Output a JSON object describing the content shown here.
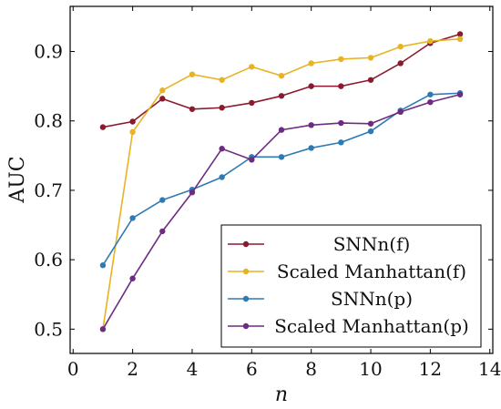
{
  "chart_data": {
    "type": "line",
    "title": "",
    "xlabel": "n",
    "ylabel": "AUC",
    "xlim": [
      -0.1,
      14.1
    ],
    "ylim": [
      0.465,
      0.965
    ],
    "xticks": [
      0,
      2,
      4,
      6,
      8,
      10,
      12,
      14
    ],
    "yticks": [
      0.5,
      0.6,
      0.7,
      0.8,
      0.9
    ],
    "ytick_labels": [
      "0.5",
      "0.6",
      "0.7",
      "0.8",
      "0.9"
    ],
    "grid": false,
    "legend_position": "bottom-right",
    "x": [
      1,
      2,
      3,
      4,
      5,
      6,
      7,
      8,
      9,
      10,
      11,
      12,
      13
    ],
    "series": [
      {
        "name": "SNNn(f)",
        "color": "#8b1a2e",
        "values": [
          0.791,
          0.799,
          0.832,
          0.817,
          0.819,
          0.826,
          0.836,
          0.85,
          0.85,
          0.859,
          0.883,
          0.912,
          0.925
        ]
      },
      {
        "name": "Scaled Manhattan(f)",
        "color": "#e8b323",
        "values": [
          0.5,
          0.784,
          0.844,
          0.867,
          0.859,
          0.878,
          0.865,
          0.883,
          0.889,
          0.891,
          0.907,
          0.915,
          0.918
        ]
      },
      {
        "name": "SNNn(p)",
        "color": "#2e7bb4",
        "values": [
          0.592,
          0.66,
          0.686,
          0.701,
          0.719,
          0.748,
          0.748,
          0.761,
          0.769,
          0.785,
          0.815,
          0.838,
          0.84
        ]
      },
      {
        "name": "Scaled Manhattan(p)",
        "color": "#6e2b82",
        "values": [
          0.5,
          0.573,
          0.641,
          0.697,
          0.76,
          0.744,
          0.787,
          0.794,
          0.797,
          0.796,
          0.813,
          0.827,
          0.838
        ]
      }
    ]
  }
}
